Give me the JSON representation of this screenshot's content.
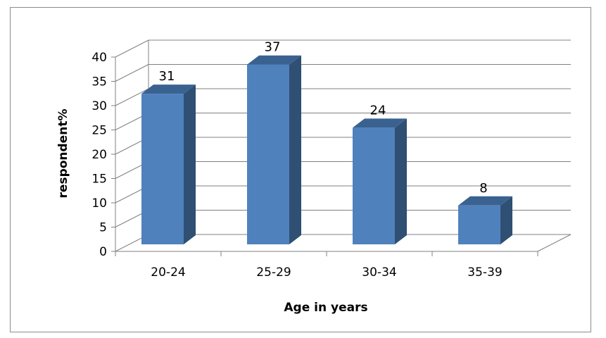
{
  "chart_data": {
    "type": "bar",
    "categories": [
      "20-24",
      "25-29",
      "30-34",
      "35-39"
    ],
    "values": [
      31,
      37,
      24,
      8
    ],
    "data_labels": [
      "31",
      "37",
      "24",
      "8"
    ],
    "title": "",
    "xlabel": "Age in years",
    "ylabel": "respondent%",
    "ylim": [
      0,
      40
    ],
    "yticks": [
      "0",
      "5",
      "10",
      "15",
      "20",
      "25",
      "30",
      "35",
      "40"
    ],
    "grid": true,
    "legend": "none",
    "style": "3d-column",
    "colors": {
      "bar_front": "#4f81bd",
      "bar_side": "#2f4f73",
      "bar_top": "#3a6291",
      "gridline": "#808080"
    }
  }
}
